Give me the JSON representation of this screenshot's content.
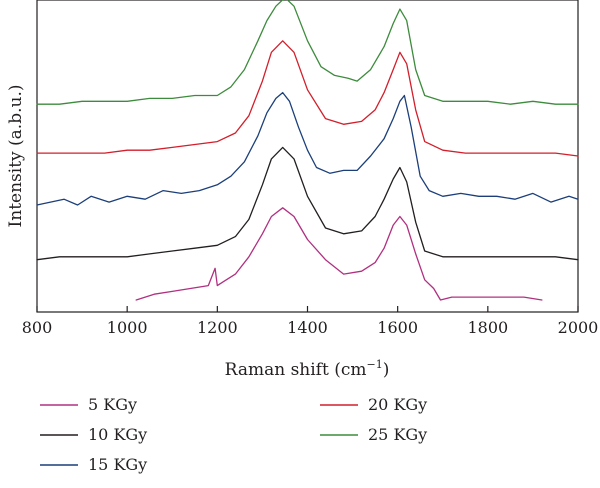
{
  "chart_data": {
    "type": "line",
    "title": "",
    "xlabel": "Raman shift (cm",
    "xlabel_superscript": "−1",
    "xlabel_suffix": ")",
    "ylabel": "Intensity (a.b.u.)",
    "xlim": [
      800,
      2000
    ],
    "ylim": [
      0,
      1
    ],
    "xticks": [
      "800",
      "1000",
      "1200",
      "1400",
      "1600",
      "1800",
      "2000"
    ],
    "yticks_shown": false,
    "grid": false,
    "legend_position": "bottom",
    "series": [
      {
        "name": "5 KGy",
        "color": "#b03080",
        "x": [
          1020,
          1060,
          1100,
          1140,
          1180,
          1195,
          1200,
          1210,
          1240,
          1270,
          1300,
          1320,
          1345,
          1370,
          1400,
          1440,
          1480,
          1520,
          1550,
          1570,
          1590,
          1605,
          1620,
          1640,
          1660,
          1680,
          1695,
          1720,
          1760,
          1800,
          1840,
          1880,
          1920
        ],
        "y": [
          0.0,
          0.02,
          0.03,
          0.04,
          0.05,
          0.11,
          0.05,
          0.06,
          0.09,
          0.15,
          0.23,
          0.29,
          0.32,
          0.29,
          0.21,
          0.14,
          0.09,
          0.1,
          0.13,
          0.18,
          0.26,
          0.29,
          0.26,
          0.16,
          0.07,
          0.04,
          0.0,
          0.01,
          0.01,
          0.01,
          0.01,
          0.01,
          0.0
        ]
      },
      {
        "name": "10 KGy",
        "color": "#231f20",
        "x": [
          800,
          850,
          900,
          950,
          1000,
          1050,
          1100,
          1150,
          1200,
          1240,
          1270,
          1300,
          1320,
          1345,
          1370,
          1400,
          1440,
          1480,
          1520,
          1550,
          1570,
          1590,
          1605,
          1620,
          1640,
          1660,
          1700,
          1750,
          1800,
          1850,
          1900,
          1950,
          2000
        ],
        "y": [
          0.14,
          0.15,
          0.15,
          0.15,
          0.15,
          0.16,
          0.17,
          0.18,
          0.19,
          0.22,
          0.28,
          0.4,
          0.49,
          0.53,
          0.49,
          0.36,
          0.25,
          0.23,
          0.24,
          0.29,
          0.35,
          0.42,
          0.46,
          0.41,
          0.27,
          0.17,
          0.15,
          0.15,
          0.15,
          0.15,
          0.15,
          0.15,
          0.14
        ]
      },
      {
        "name": "15 KGy",
        "color": "#1c3f7a",
        "x": [
          800,
          830,
          860,
          890,
          920,
          960,
          1000,
          1040,
          1080,
          1120,
          1160,
          1200,
          1230,
          1260,
          1290,
          1310,
          1330,
          1345,
          1360,
          1380,
          1400,
          1420,
          1450,
          1480,
          1510,
          1540,
          1570,
          1590,
          1605,
          1615,
          1630,
          1650,
          1670,
          1700,
          1740,
          1780,
          1820,
          1860,
          1900,
          1940,
          1980,
          2000
        ],
        "y": [
          0.33,
          0.34,
          0.35,
          0.33,
          0.36,
          0.34,
          0.36,
          0.35,
          0.38,
          0.37,
          0.38,
          0.4,
          0.43,
          0.48,
          0.57,
          0.65,
          0.7,
          0.72,
          0.69,
          0.6,
          0.52,
          0.46,
          0.44,
          0.45,
          0.45,
          0.5,
          0.56,
          0.63,
          0.69,
          0.71,
          0.6,
          0.43,
          0.38,
          0.36,
          0.37,
          0.36,
          0.36,
          0.35,
          0.37,
          0.34,
          0.36,
          0.35
        ]
      },
      {
        "name": "20 KGy",
        "color": "#d21f2b",
        "x": [
          800,
          850,
          900,
          950,
          1000,
          1050,
          1100,
          1150,
          1200,
          1240,
          1270,
          1300,
          1320,
          1345,
          1370,
          1400,
          1440,
          1480,
          1520,
          1550,
          1570,
          1590,
          1605,
          1620,
          1640,
          1660,
          1700,
          1750,
          1800,
          1850,
          1900,
          1950,
          2000
        ],
        "y": [
          0.51,
          0.51,
          0.51,
          0.51,
          0.52,
          0.52,
          0.53,
          0.54,
          0.55,
          0.58,
          0.64,
          0.76,
          0.86,
          0.9,
          0.86,
          0.73,
          0.63,
          0.61,
          0.62,
          0.66,
          0.72,
          0.8,
          0.86,
          0.82,
          0.66,
          0.55,
          0.52,
          0.51,
          0.51,
          0.51,
          0.51,
          0.51,
          0.5
        ]
      },
      {
        "name": "25 KGy",
        "color": "#3d8b3d",
        "x": [
          800,
          850,
          900,
          950,
          1000,
          1050,
          1100,
          1150,
          1200,
          1230,
          1260,
          1290,
          1310,
          1330,
          1350,
          1370,
          1400,
          1430,
          1460,
          1490,
          1510,
          1540,
          1570,
          1590,
          1605,
          1620,
          1640,
          1660,
          1700,
          1750,
          1800,
          1850,
          1900,
          1950,
          2000
        ],
        "y": [
          0.68,
          0.68,
          0.69,
          0.69,
          0.69,
          0.7,
          0.7,
          0.71,
          0.71,
          0.74,
          0.8,
          0.9,
          0.97,
          1.02,
          1.05,
          1.02,
          0.9,
          0.81,
          0.78,
          0.77,
          0.76,
          0.8,
          0.88,
          0.96,
          1.01,
          0.97,
          0.8,
          0.71,
          0.69,
          0.69,
          0.69,
          0.68,
          0.69,
          0.68,
          0.68
        ]
      }
    ]
  },
  "legend": {
    "items": [
      {
        "label": "5 KGy",
        "color": "#b03080"
      },
      {
        "label": "10 KGy",
        "color": "#231f20"
      },
      {
        "label": "15 KGy",
        "color": "#1c3f7a"
      },
      {
        "label": "20 KGy",
        "color": "#d21f2b"
      },
      {
        "label": "25 KGy",
        "color": "#3d8b3d"
      }
    ]
  }
}
